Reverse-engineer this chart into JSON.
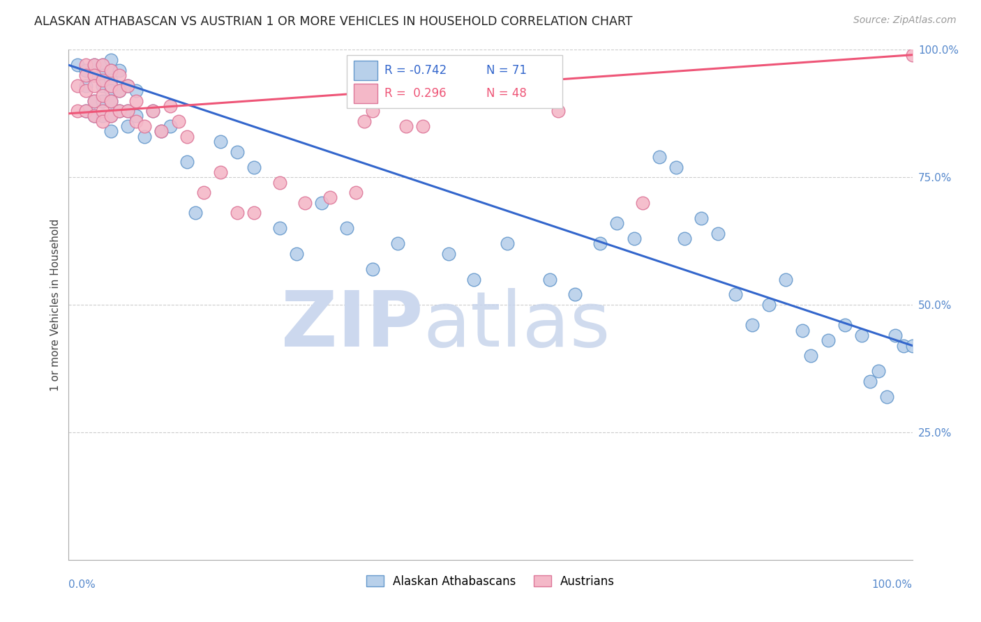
{
  "title": "ALASKAN ATHABASCAN VS AUSTRIAN 1 OR MORE VEHICLES IN HOUSEHOLD CORRELATION CHART",
  "source": "Source: ZipAtlas.com",
  "ylabel": "1 or more Vehicles in Household",
  "blue_R": -0.742,
  "blue_N": 71,
  "pink_R": 0.296,
  "pink_N": 48,
  "blue_color": "#b8d0ea",
  "blue_edge_color": "#6699cc",
  "pink_color": "#f4b8c8",
  "pink_edge_color": "#dd7799",
  "blue_line_color": "#3366cc",
  "pink_line_color": "#ee5577",
  "watermark_zip_color": "#ccd8ee",
  "watermark_atlas_color": "#c8d5ec",
  "blue_x": [
    0.01,
    0.02,
    0.02,
    0.02,
    0.03,
    0.03,
    0.03,
    0.03,
    0.04,
    0.04,
    0.04,
    0.04,
    0.04,
    0.05,
    0.05,
    0.05,
    0.05,
    0.05,
    0.05,
    0.05,
    0.06,
    0.06,
    0.06,
    0.07,
    0.07,
    0.07,
    0.08,
    0.08,
    0.09,
    0.1,
    0.11,
    0.12,
    0.14,
    0.15,
    0.18,
    0.2,
    0.22,
    0.25,
    0.27,
    0.3,
    0.33,
    0.36,
    0.39,
    0.45,
    0.48,
    0.52,
    0.57,
    0.6,
    0.63,
    0.65,
    0.67,
    0.7,
    0.72,
    0.73,
    0.75,
    0.77,
    0.79,
    0.81,
    0.83,
    0.85,
    0.87,
    0.88,
    0.9,
    0.92,
    0.94,
    0.95,
    0.96,
    0.97,
    0.98,
    0.99,
    1.0
  ],
  "blue_y": [
    0.97,
    0.96,
    0.93,
    0.88,
    0.97,
    0.95,
    0.9,
    0.87,
    0.97,
    0.95,
    0.93,
    0.9,
    0.87,
    0.98,
    0.96,
    0.94,
    0.92,
    0.9,
    0.87,
    0.84,
    0.96,
    0.92,
    0.88,
    0.93,
    0.88,
    0.85,
    0.92,
    0.87,
    0.83,
    0.88,
    0.84,
    0.85,
    0.78,
    0.68,
    0.82,
    0.8,
    0.77,
    0.65,
    0.6,
    0.7,
    0.65,
    0.57,
    0.62,
    0.6,
    0.55,
    0.62,
    0.55,
    0.52,
    0.62,
    0.66,
    0.63,
    0.79,
    0.77,
    0.63,
    0.67,
    0.64,
    0.52,
    0.46,
    0.5,
    0.55,
    0.45,
    0.4,
    0.43,
    0.46,
    0.44,
    0.35,
    0.37,
    0.32,
    0.44,
    0.42,
    0.42
  ],
  "pink_x": [
    0.01,
    0.01,
    0.02,
    0.02,
    0.02,
    0.02,
    0.03,
    0.03,
    0.03,
    0.03,
    0.03,
    0.04,
    0.04,
    0.04,
    0.04,
    0.04,
    0.05,
    0.05,
    0.05,
    0.05,
    0.06,
    0.06,
    0.06,
    0.07,
    0.07,
    0.08,
    0.08,
    0.09,
    0.1,
    0.11,
    0.12,
    0.13,
    0.14,
    0.16,
    0.18,
    0.2,
    0.22,
    0.25,
    0.28,
    0.31,
    0.34,
    0.35,
    0.36,
    0.4,
    0.42,
    0.58,
    0.68,
    1.0
  ],
  "pink_y": [
    0.93,
    0.88,
    0.97,
    0.95,
    0.92,
    0.88,
    0.97,
    0.95,
    0.93,
    0.9,
    0.87,
    0.97,
    0.94,
    0.91,
    0.88,
    0.86,
    0.96,
    0.93,
    0.9,
    0.87,
    0.95,
    0.92,
    0.88,
    0.93,
    0.88,
    0.9,
    0.86,
    0.85,
    0.88,
    0.84,
    0.89,
    0.86,
    0.83,
    0.72,
    0.76,
    0.68,
    0.68,
    0.74,
    0.7,
    0.71,
    0.72,
    0.86,
    0.88,
    0.85,
    0.85,
    0.88,
    0.7,
    0.99
  ]
}
